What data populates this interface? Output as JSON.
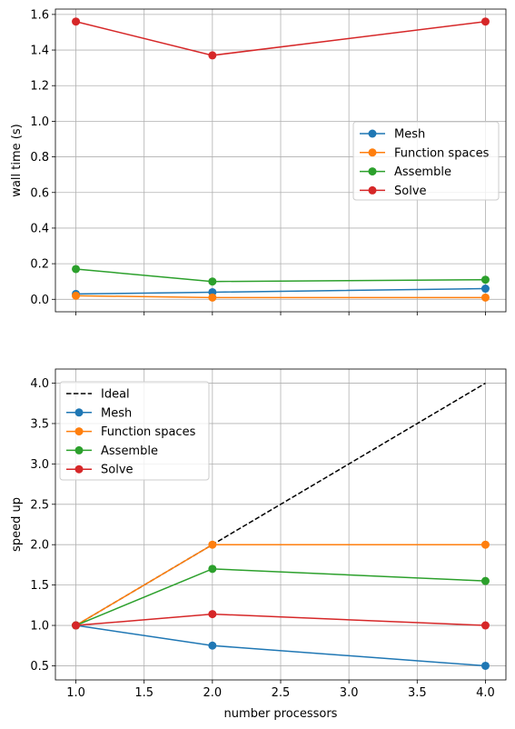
{
  "chart_data": [
    {
      "type": "line",
      "title": "",
      "xlabel": "",
      "ylabel": "wall time (s)",
      "xlim": [
        0.85,
        4.15
      ],
      "ylim": [
        -0.07,
        1.63
      ],
      "xticks": [
        1.0,
        1.5,
        2.0,
        2.5,
        3.0,
        3.5,
        4.0
      ],
      "xtick_labels_visible": false,
      "yticks": [
        0.0,
        0.2,
        0.4,
        0.6,
        0.8,
        1.0,
        1.2,
        1.4,
        1.6
      ],
      "ytick_labels": [
        "0.0",
        "0.2",
        "0.4",
        "0.6",
        "0.8",
        "1.0",
        "1.2",
        "1.4",
        "1.6"
      ],
      "grid": true,
      "legend_position": "center-right",
      "series": [
        {
          "name": "Mesh",
          "color": "#1f77b4",
          "marker": "circle",
          "x": [
            1,
            2,
            4
          ],
          "y": [
            0.03,
            0.04,
            0.06
          ]
        },
        {
          "name": "Function spaces",
          "color": "#ff7f0e",
          "marker": "circle",
          "x": [
            1,
            2,
            4
          ],
          "y": [
            0.02,
            0.01,
            0.01
          ]
        },
        {
          "name": "Assemble",
          "color": "#2ca02c",
          "marker": "circle",
          "x": [
            1,
            2,
            4
          ],
          "y": [
            0.17,
            0.1,
            0.11
          ]
        },
        {
          "name": "Solve",
          "color": "#d62728",
          "marker": "circle",
          "x": [
            1,
            2,
            4
          ],
          "y": [
            1.56,
            1.37,
            1.56
          ]
        }
      ]
    },
    {
      "type": "line",
      "title": "",
      "xlabel": "number processors",
      "ylabel": "speed up",
      "xlim": [
        0.85,
        4.15
      ],
      "ylim": [
        0.325,
        4.175
      ],
      "xticks": [
        1.0,
        1.5,
        2.0,
        2.5,
        3.0,
        3.5,
        4.0
      ],
      "xtick_labels": [
        "1.0",
        "1.5",
        "2.0",
        "2.5",
        "3.0",
        "3.5",
        "4.0"
      ],
      "yticks": [
        0.5,
        1.0,
        1.5,
        2.0,
        2.5,
        3.0,
        3.5,
        4.0
      ],
      "ytick_labels": [
        "0.5",
        "1.0",
        "1.5",
        "2.0",
        "2.5",
        "3.0",
        "3.5",
        "4.0"
      ],
      "grid": true,
      "legend_position": "upper-left",
      "series": [
        {
          "name": "Ideal",
          "color": "#000000",
          "marker": "none",
          "dashed": true,
          "x": [
            1,
            2,
            4
          ],
          "y": [
            1,
            2,
            4
          ]
        },
        {
          "name": "Mesh",
          "color": "#1f77b4",
          "marker": "circle",
          "x": [
            1,
            2,
            4
          ],
          "y": [
            1.0,
            0.75,
            0.5
          ]
        },
        {
          "name": "Function spaces",
          "color": "#ff7f0e",
          "marker": "circle",
          "x": [
            1,
            2,
            4
          ],
          "y": [
            1.0,
            2.0,
            2.0
          ]
        },
        {
          "name": "Assemble",
          "color": "#2ca02c",
          "marker": "circle",
          "x": [
            1,
            2,
            4
          ],
          "y": [
            1.0,
            1.7,
            1.55
          ]
        },
        {
          "name": "Solve",
          "color": "#d62728",
          "marker": "circle",
          "x": [
            1,
            2,
            4
          ],
          "y": [
            1.0,
            1.14,
            1.0
          ]
        }
      ]
    }
  ]
}
